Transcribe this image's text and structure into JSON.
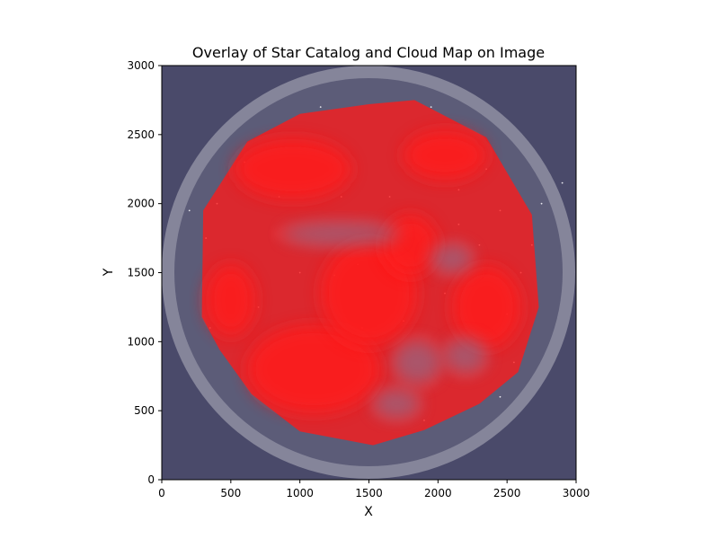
{
  "chart_data": {
    "type": "heatmap",
    "title": "Overlay of Star Catalog and Cloud Map on Image",
    "xlabel": "X",
    "ylabel": "Y",
    "xlim": [
      0,
      3000
    ],
    "ylim": [
      0,
      3000
    ],
    "xticks": [
      0,
      500,
      1000,
      1500,
      2000,
      2500,
      3000
    ],
    "yticks": [
      0,
      500,
      1000,
      1500,
      2000,
      2500,
      3000
    ],
    "grid": false,
    "legend": "none",
    "colors": {
      "background": "#4a4a6a",
      "sky_disk": "#5c5c78",
      "horizon_ring": "#85859a",
      "cloud_overlay": "#ff1a1a",
      "stars": "#e8e8f0"
    },
    "cloud_region_outline": [
      [
        300,
        1950
      ],
      [
        620,
        2450
      ],
      [
        1000,
        2650
      ],
      [
        1500,
        2720
      ],
      [
        1830,
        2750
      ],
      [
        2350,
        2480
      ],
      [
        2680,
        1920
      ],
      [
        2730,
        1250
      ],
      [
        2580,
        780
      ],
      [
        2300,
        550
      ],
      [
        1900,
        360
      ],
      [
        1530,
        250
      ],
      [
        1000,
        350
      ],
      [
        650,
        620
      ],
      [
        420,
        940
      ],
      [
        290,
        1180
      ]
    ],
    "dense_cloud_areas": [
      {
        "x": 1100,
        "y": 800,
        "rx": 480,
        "ry": 320
      },
      {
        "x": 1500,
        "y": 1350,
        "rx": 350,
        "ry": 380
      },
      {
        "x": 950,
        "y": 2250,
        "rx": 420,
        "ry": 220
      },
      {
        "x": 1800,
        "y": 1700,
        "rx": 200,
        "ry": 220
      },
      {
        "x": 500,
        "y": 1300,
        "rx": 180,
        "ry": 260
      },
      {
        "x": 2350,
        "y": 1250,
        "rx": 250,
        "ry": 300
      },
      {
        "x": 2050,
        "y": 2350,
        "rx": 300,
        "ry": 180
      }
    ],
    "clear_sky_areas": [
      {
        "x": 1300,
        "y": 1780,
        "rx": 500,
        "ry": 120
      },
      {
        "x": 2100,
        "y": 1600,
        "rx": 180,
        "ry": 150
      },
      {
        "x": 1850,
        "y": 850,
        "rx": 200,
        "ry": 220
      },
      {
        "x": 2200,
        "y": 900,
        "rx": 180,
        "ry": 180
      },
      {
        "x": 1700,
        "y": 550,
        "rx": 200,
        "ry": 150
      }
    ],
    "stars": [
      [
        320,
        1750
      ],
      [
        400,
        2000
      ],
      [
        1250,
        1480
      ],
      [
        1420,
        1560
      ],
      [
        1650,
        2050
      ],
      [
        2050,
        1350
      ],
      [
        2300,
        1700
      ],
      [
        2450,
        1950
      ],
      [
        2680,
        1700
      ],
      [
        700,
        1250
      ],
      [
        1950,
        2700
      ],
      [
        1150,
        2700
      ],
      [
        850,
        2050
      ],
      [
        2450,
        600
      ],
      [
        1900,
        430
      ],
      [
        2150,
        2100
      ],
      [
        600,
        2300
      ],
      [
        2900,
        2150
      ],
      [
        200,
        1950
      ],
      [
        1450,
        1100
      ],
      [
        2600,
        1500
      ],
      [
        2500,
        1200
      ],
      [
        1750,
        1150
      ],
      [
        350,
        1100
      ],
      [
        1000,
        1500
      ],
      [
        2350,
        2250
      ],
      [
        2750,
        2000
      ],
      [
        2150,
        1850
      ],
      [
        2550,
        850
      ],
      [
        1300,
        2050
      ]
    ]
  }
}
